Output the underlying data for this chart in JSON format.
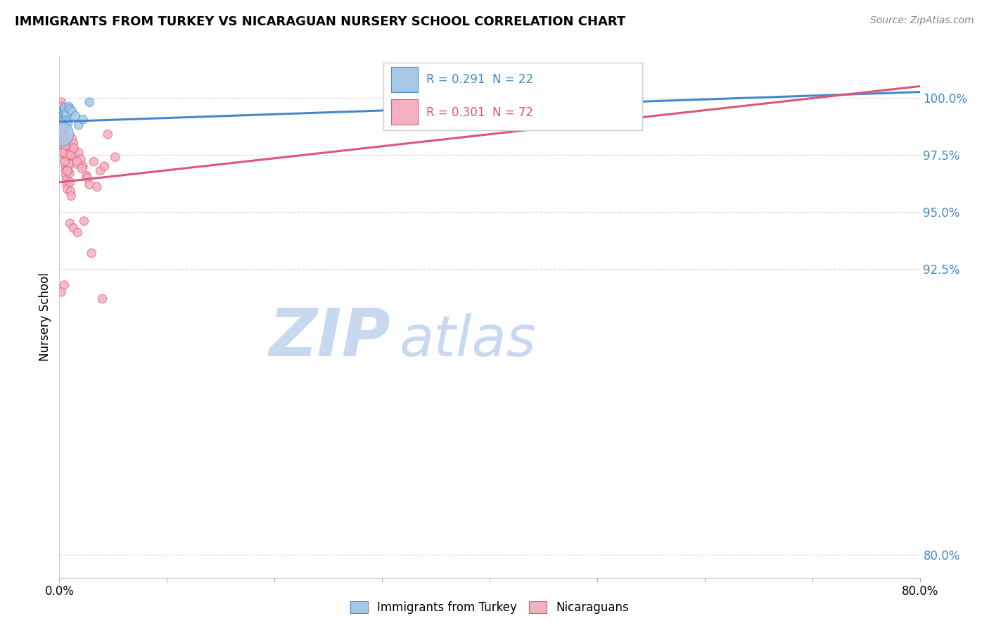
{
  "title": "IMMIGRANTS FROM TURKEY VS NICARAGUAN NURSERY SCHOOL CORRELATION CHART",
  "source": "Source: ZipAtlas.com",
  "ylabel": "Nursery School",
  "ytick_values": [
    80.0,
    92.5,
    95.0,
    97.5,
    100.0
  ],
  "xlim": [
    0.0,
    80.0
  ],
  "ylim": [
    79.0,
    101.8
  ],
  "legend_label_blue": "Immigrants from Turkey",
  "legend_label_pink": "Nicaraguans",
  "r_blue": 0.291,
  "n_blue": 22,
  "r_pink": 0.301,
  "n_pink": 72,
  "blue_color": "#a8c8e8",
  "pink_color": "#f4b0c0",
  "trendline_blue": "#4488cc",
  "trendline_pink": "#dd5577",
  "watermark_zip_color": "#c8d8ee",
  "watermark_atlas_color": "#c8d8ee",
  "blue_trendline_x": [
    0,
    80
  ],
  "blue_trendline_y": [
    98.95,
    100.25
  ],
  "pink_trendline_x": [
    0,
    80
  ],
  "pink_trendline_y": [
    96.3,
    100.5
  ],
  "blue_scatter_x": [
    0.15,
    0.25,
    0.3,
    0.35,
    0.4,
    0.42,
    0.45,
    0.5,
    0.55,
    0.6,
    0.65,
    0.7,
    0.8,
    0.9,
    1.0,
    1.2,
    1.5,
    1.8,
    2.2,
    2.8,
    48.0,
    0.2
  ],
  "blue_scatter_y": [
    99.35,
    99.4,
    99.2,
    99.45,
    99.1,
    99.3,
    99.5,
    99.55,
    99.35,
    99.15,
    99.25,
    99.0,
    98.9,
    99.6,
    99.5,
    99.4,
    99.2,
    98.8,
    99.05,
    99.8,
    100.1,
    98.4
  ],
  "blue_scatter_s": [
    80,
    80,
    80,
    80,
    80,
    80,
    80,
    80,
    80,
    80,
    80,
    80,
    80,
    80,
    80,
    80,
    80,
    80,
    80,
    80,
    80,
    600
  ],
  "pink_scatter_x": [
    0.08,
    0.1,
    0.12,
    0.15,
    0.18,
    0.2,
    0.22,
    0.25,
    0.28,
    0.3,
    0.32,
    0.35,
    0.38,
    0.4,
    0.42,
    0.45,
    0.48,
    0.5,
    0.52,
    0.55,
    0.58,
    0.6,
    0.62,
    0.65,
    0.68,
    0.7,
    0.75,
    0.8,
    0.85,
    0.9,
    0.95,
    1.0,
    1.05,
    1.1,
    1.15,
    1.2,
    1.3,
    1.4,
    1.5,
    1.6,
    1.8,
    2.0,
    2.2,
    2.5,
    2.8,
    3.2,
    3.8,
    4.5,
    0.22,
    0.4,
    0.55,
    0.7,
    0.9,
    1.1,
    1.35,
    1.65,
    2.1,
    2.6,
    3.5,
    4.2,
    5.2,
    0.3,
    0.5,
    0.75,
    1.0,
    1.3,
    1.7,
    2.3,
    3.0,
    4.0,
    0.18,
    0.45
  ],
  "pink_scatter_y": [
    99.7,
    99.5,
    99.3,
    99.1,
    98.9,
    99.8,
    99.6,
    99.4,
    99.2,
    99.0,
    98.8,
    98.6,
    98.4,
    98.2,
    98.0,
    97.8,
    97.6,
    98.5,
    97.4,
    97.2,
    97.0,
    96.8,
    96.6,
    97.3,
    96.4,
    96.2,
    96.0,
    96.9,
    97.5,
    97.1,
    96.7,
    96.3,
    95.9,
    95.7,
    97.8,
    98.2,
    98.0,
    97.7,
    97.4,
    97.1,
    97.6,
    97.3,
    97.0,
    96.6,
    96.2,
    97.2,
    96.8,
    98.4,
    98.7,
    98.3,
    97.9,
    97.5,
    97.1,
    97.5,
    97.8,
    97.2,
    96.9,
    96.5,
    96.1,
    97.0,
    97.4,
    97.6,
    97.2,
    96.8,
    94.5,
    94.3,
    94.1,
    94.6,
    93.2,
    91.2,
    91.5,
    91.8
  ],
  "pink_scatter_s": [
    80,
    80,
    80,
    80,
    80,
    80,
    80,
    80,
    80,
    80,
    80,
    80,
    80,
    80,
    80,
    80,
    80,
    80,
    80,
    80,
    80,
    80,
    80,
    80,
    80,
    80,
    80,
    80,
    80,
    80,
    80,
    80,
    80,
    80,
    80,
    80,
    80,
    80,
    80,
    80,
    80,
    80,
    80,
    80,
    80,
    80,
    80,
    80,
    80,
    80,
    80,
    80,
    80,
    80,
    80,
    80,
    80,
    80,
    80,
    80,
    80,
    80,
    80,
    80,
    80,
    80,
    80,
    80,
    80,
    80,
    80,
    80
  ]
}
